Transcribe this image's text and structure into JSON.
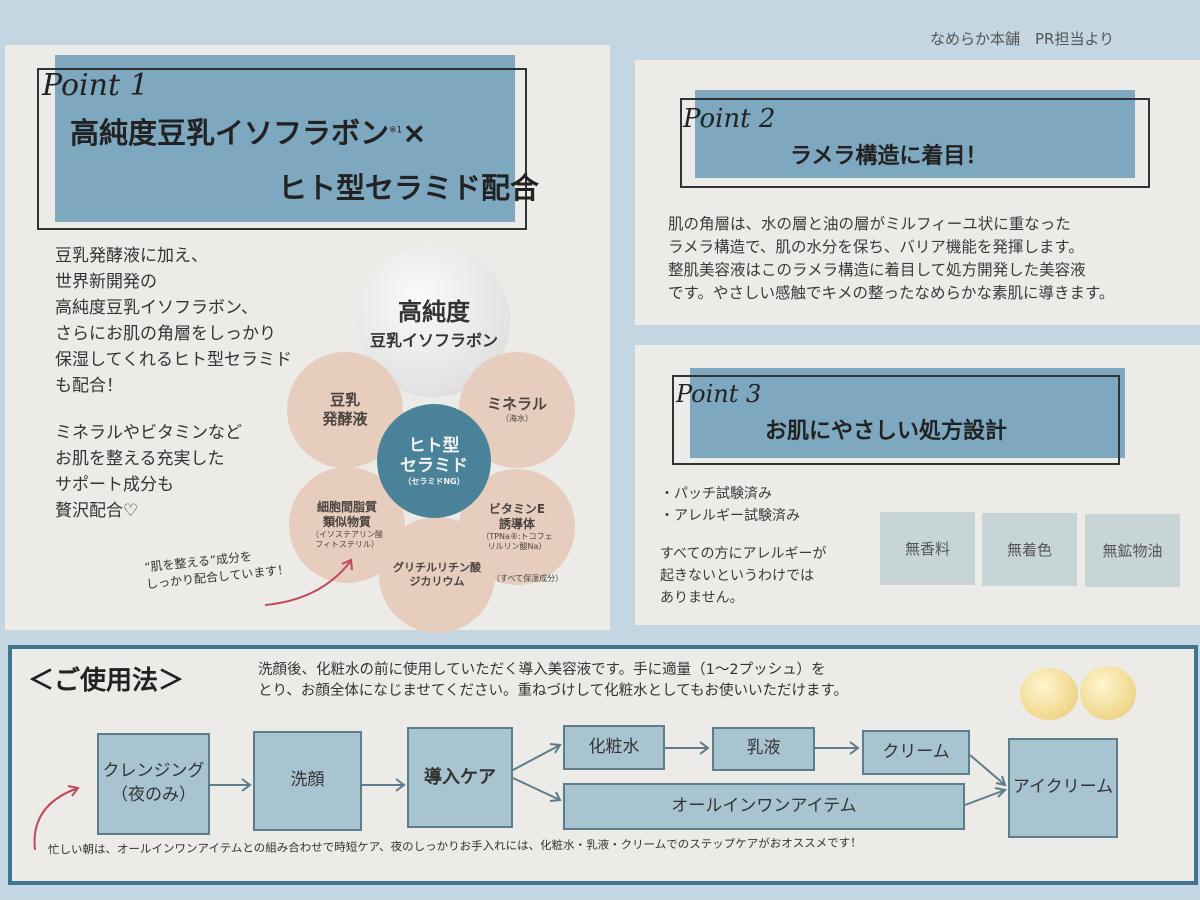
{
  "header": {
    "credit": "なめらか本舗　PR担当より"
  },
  "point1": {
    "label": "Point 1",
    "title_line1": "高純度豆乳イソフラボン",
    "note_mark": "※1",
    "title_times": "×",
    "title_line2": "ヒト型セラミド配合",
    "paragraph1": [
      "豆乳発酵液に加え、",
      "世界新開発の",
      "高純度豆乳イソフラボン、",
      "さらにお肌の角層をしっかり",
      "保湿してくれるヒト型セラミド",
      "も配合！"
    ],
    "paragraph2": [
      "ミネラルやビタミンなど",
      "お肌を整える充実した",
      "サポート成分も",
      "贅沢配合♡"
    ],
    "diagram": {
      "top": [
        "高純度",
        "豆乳イソフラボン"
      ],
      "center": [
        "ヒト型",
        "セラミド",
        "（セラミドNG）"
      ],
      "petals": [
        {
          "name": "豆乳\n発酵液",
          "sub": ""
        },
        {
          "name": "ミネラル",
          "sub": "（海水）"
        },
        {
          "name": "細胞間脂質\n類似物質",
          "sub": "（イソステアリン酸\nフィトステリル）"
        },
        {
          "name": "ビタミンE\n誘導体",
          "sub": "（TPNa®:トコフェ\nリルリン酸Na）"
        },
        {
          "name": "グリチルリチン酸\nジカリウム",
          "sub": ""
        }
      ],
      "footnote": "（すべて保湿成分）",
      "callout": [
        "“肌を整える”成分を",
        "しっかり配合しています！"
      ]
    }
  },
  "point2": {
    "label": "Point 2",
    "title": "ラメラ構造に着目！",
    "body": [
      "肌の角層は、水の層と油の層がミルフィーユ状に重なった",
      "ラメラ構造で、肌の水分を保ち、バリア機能を発揮します。",
      "整肌美容液はこのラメラ構造に着目して処方開発した美容液",
      "です。やさしい感触でキメの整ったなめらかな素肌に導きます。"
    ]
  },
  "point3": {
    "label": "Point 3",
    "title": "お肌にやさしい処方設計",
    "bullets": [
      "・パッチ試験済み",
      "・アレルギー試験済み"
    ],
    "disclaimer": [
      "すべての方にアレルギーが",
      "起きないというわけでは",
      "ありません。"
    ],
    "tags": [
      "無香料",
      "無着色",
      "無鉱物油"
    ]
  },
  "usage": {
    "title": "＜ご使用法＞",
    "description": [
      "洗顔後、化粧水の前に使用していただく導入美容液です。手に適量（1〜2プッシュ）を",
      "とり、お顔全体になじませてください。重ねづけして化粧水としてもお使いいただけます。"
    ],
    "steps": {
      "cleansing": "クレンジング\n（夜のみ）",
      "wash": "洗顔",
      "booster": "導入ケア",
      "lotion": "化粧水",
      "milk": "乳液",
      "cream": "クリーム",
      "allinone": "オールインワンアイテム",
      "eyecream": "アイクリーム"
    },
    "tip": "忙しい朝は、オールインワンアイテムとの組み合わせで時短ケア、夜のしっかりお手入れには、化粧水・乳液・クリームでのステップケアがおオススメです！"
  },
  "colors": {
    "accent_blue": "#7ea8c0",
    "teal": "#4a8399",
    "petal": "#e7cdbd",
    "arrow_red": "#c0485a"
  }
}
